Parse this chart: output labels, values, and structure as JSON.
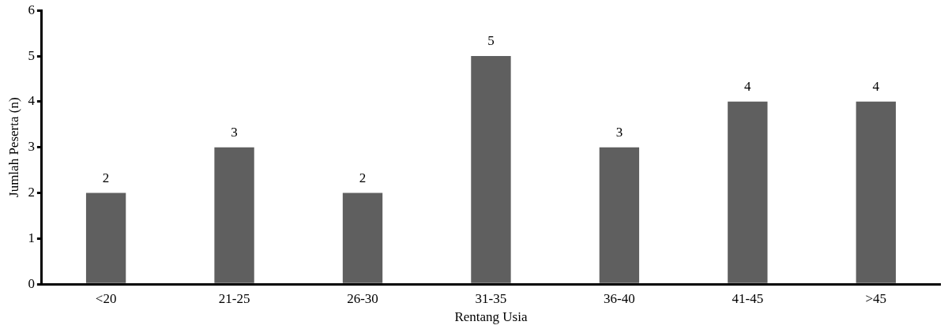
{
  "chart_data": {
    "type": "bar",
    "xlabel": "Rentang Usia",
    "ylabel": "Jumlah Peserta (n)",
    "categories": [
      "<20",
      "21-25",
      "26-30",
      "31-35",
      "36-40",
      "41-45",
      ">45"
    ],
    "values": [
      2,
      3,
      2,
      5,
      3,
      4,
      4
    ],
    "color": "#5f5f5f",
    "ylim": [
      0,
      6
    ],
    "yticks": [
      0,
      1,
      2,
      3,
      4,
      5,
      6
    ],
    "grid": false,
    "legend": false,
    "data_labels": true
  }
}
